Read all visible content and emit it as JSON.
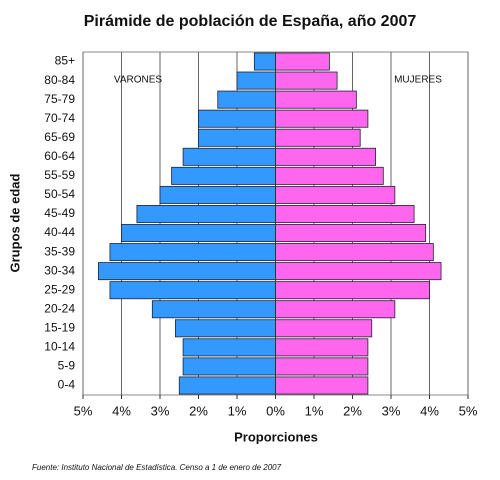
{
  "chart_data": {
    "type": "pyramid",
    "title": "Pirámide de población de España, año 2007",
    "x_label": "Proporciones",
    "y_label": "Grupos de edad",
    "source": "Fuente: Instituto Nacional de Estadística. Censo a 1 de enero de 2007",
    "categories": [
      "0-4",
      "5-9",
      "10-14",
      "15-19",
      "20-24",
      "25-29",
      "30-34",
      "35-39",
      "40-44",
      "45-49",
      "50-54",
      "55-59",
      "60-64",
      "65-69",
      "70-74",
      "75-79",
      "80-84",
      "85+"
    ],
    "series": [
      {
        "name": "VARONES",
        "color": "#3399ff",
        "values": [
          -2.5,
          -2.4,
          -2.4,
          -2.6,
          -3.2,
          -4.3,
          -4.6,
          -4.3,
          -4.0,
          -3.6,
          -3.0,
          -2.7,
          -2.4,
          -2.0,
          -2.0,
          -1.5,
          -1.0,
          -0.55
        ]
      },
      {
        "name": "MUJERES",
        "color": "#ff66ee",
        "values": [
          2.4,
          2.4,
          2.4,
          2.5,
          3.1,
          4.0,
          4.3,
          4.1,
          3.9,
          3.6,
          3.1,
          2.8,
          2.6,
          2.2,
          2.4,
          2.1,
          1.6,
          1.4
        ]
      }
    ],
    "xlim": [
      -5,
      5
    ],
    "xticks": [
      {
        "value": -5,
        "label": "5%"
      },
      {
        "value": -4,
        "label": "4%"
      },
      {
        "value": -3,
        "label": "3%"
      },
      {
        "value": -2,
        "label": "2%"
      },
      {
        "value": -1,
        "label": "1%"
      },
      {
        "value": 0,
        "label": "0%"
      },
      {
        "value": 1,
        "label": "1%"
      },
      {
        "value": 2,
        "label": "2%"
      },
      {
        "value": 3,
        "label": "3%"
      },
      {
        "value": 4,
        "label": "4%"
      },
      {
        "value": 5,
        "label": "5%"
      }
    ],
    "grid": true
  }
}
